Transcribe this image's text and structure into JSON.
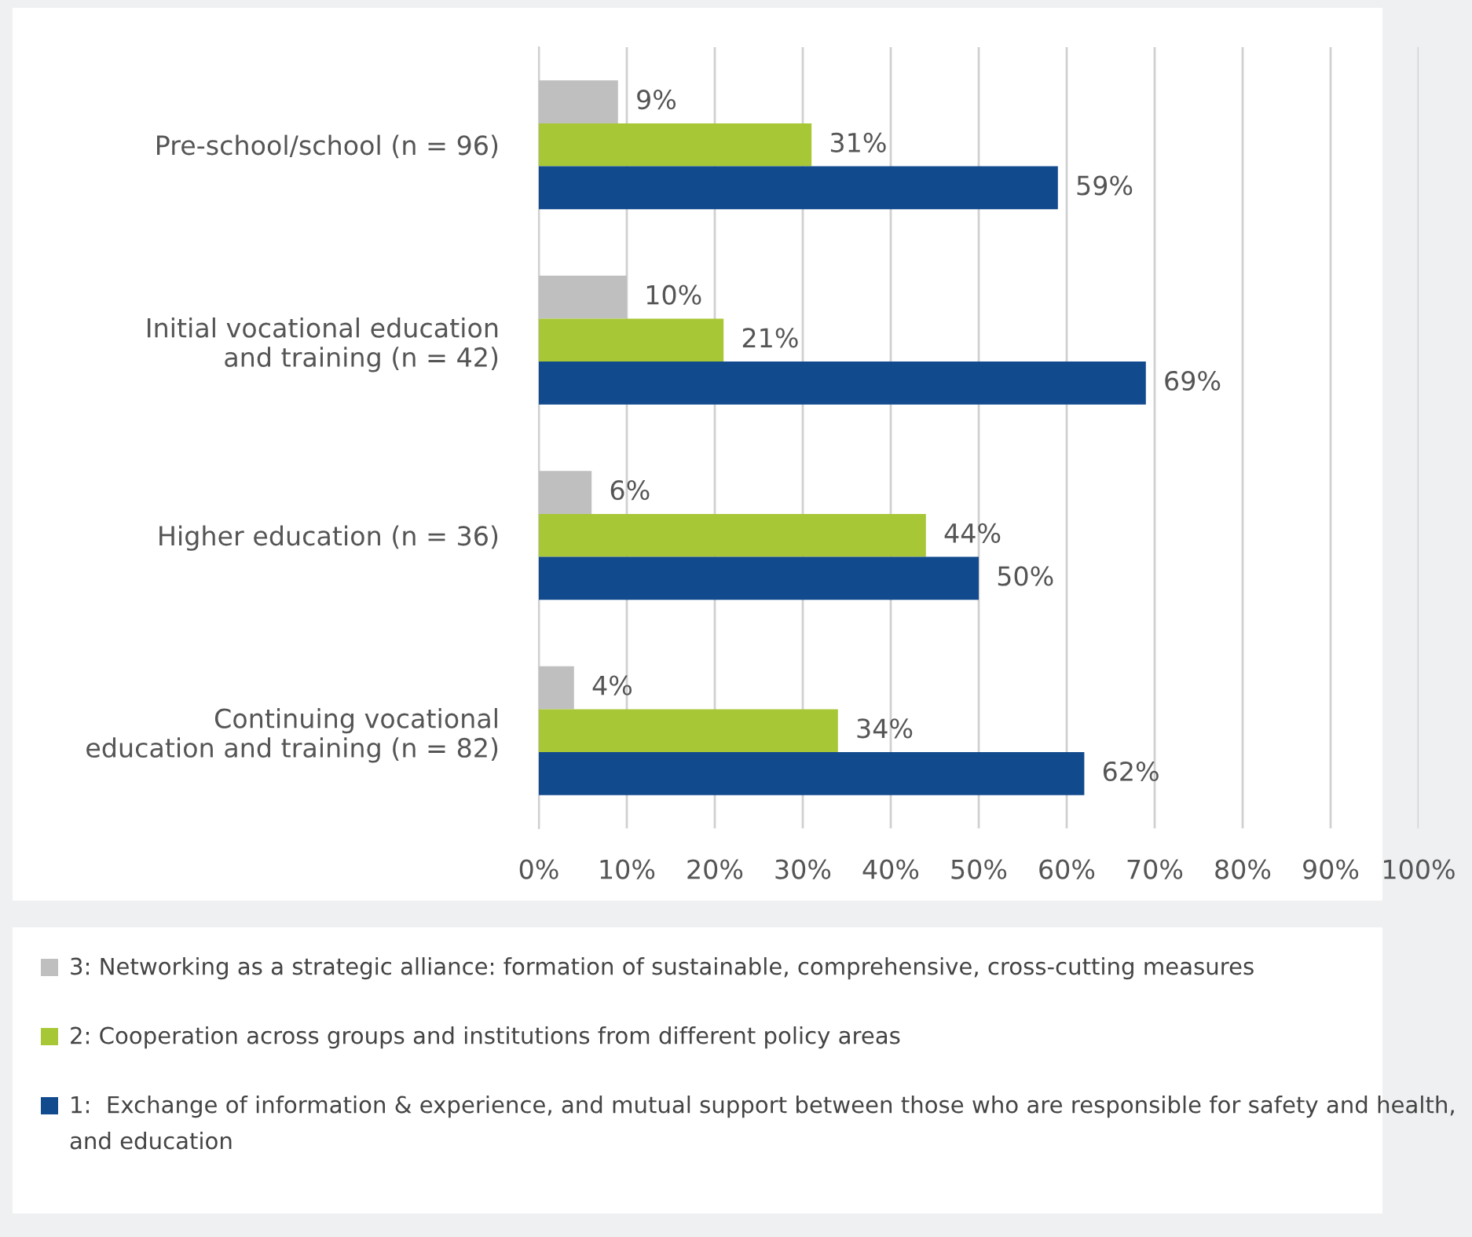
{
  "chart_data": {
    "type": "bar",
    "orientation": "horizontal",
    "categories": [
      "Pre-school/school (n = 96)",
      "Initial vocational education\nand training (n = 42)",
      "Higher education (n = 36)",
      "Continuing vocational\neducation and training (n = 82)"
    ],
    "series": [
      {
        "name": "3: Networking as a strategic alliance: formation of sustainable, comprehensive, cross-cutting measures",
        "color": "#bfbfbf",
        "values": [
          9,
          10,
          6,
          4
        ],
        "value_labels": [
          "9%",
          "10%",
          "6%",
          "4%"
        ]
      },
      {
        "name": "2: Cooperation across groups and institutions from different policy areas",
        "color": "#a8c736",
        "values": [
          31,
          21,
          44,
          34
        ],
        "value_labels": [
          "31%",
          "21%",
          "44%",
          "34%"
        ]
      },
      {
        "name": "1:  Exchange of information & experience, and mutual support between those who are responsible for safety and health, and education",
        "color": "#124a8e",
        "values": [
          59,
          69,
          50,
          62
        ],
        "value_labels": [
          "59%",
          "69%",
          "50%",
          "62%"
        ]
      }
    ],
    "xlim": [
      0,
      100
    ],
    "xticks": [
      {
        "value": 0,
        "label": "0%"
      },
      {
        "value": 10,
        "label": "10%"
      },
      {
        "value": 20,
        "label": "20%"
      },
      {
        "value": 30,
        "label": "30%"
      },
      {
        "value": 40,
        "label": "40%"
      },
      {
        "value": 50,
        "label": "50%"
      },
      {
        "value": 60,
        "label": "60%"
      },
      {
        "value": 70,
        "label": "70%"
      },
      {
        "value": 80,
        "label": "80%"
      },
      {
        "value": 90,
        "label": "90%"
      },
      {
        "value": 100,
        "label": "100%"
      }
    ],
    "grid": "x",
    "legend": "bottom"
  }
}
